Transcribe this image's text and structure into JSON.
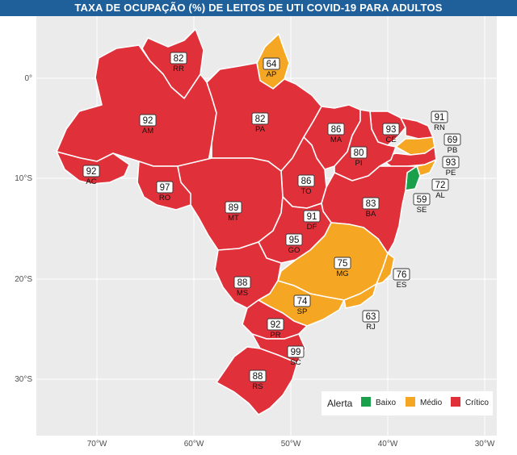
{
  "title": "TAXA DE OCUPAÇÃO (%) DE LEITOS DE UTI COVID-19 PARA ADULTOS",
  "colors": {
    "baixo": "#1aa04b",
    "medio": "#f5a623",
    "critico": "#e0313b",
    "panel": "#ebebeb",
    "title_bg": "#1f5f9a"
  },
  "axes": {
    "y_labels": [
      "0°",
      "10°S",
      "20°S",
      "30°S"
    ],
    "x_labels": [
      "70°W",
      "60°W",
      "50°W",
      "40°W",
      "30°W"
    ]
  },
  "states": [
    {
      "abbr": "RR",
      "value": "82",
      "level": "critico"
    },
    {
      "abbr": "AP",
      "value": "64",
      "level": "medio"
    },
    {
      "abbr": "AM",
      "value": "92",
      "level": "critico"
    },
    {
      "abbr": "PA",
      "value": "82",
      "level": "critico"
    },
    {
      "abbr": "MA",
      "value": "86",
      "level": "critico"
    },
    {
      "abbr": "CE",
      "value": "93",
      "level": "critico"
    },
    {
      "abbr": "RN",
      "value": "91",
      "level": "critico"
    },
    {
      "abbr": "PB",
      "value": "69",
      "level": "medio"
    },
    {
      "abbr": "PE",
      "value": "93",
      "level": "critico"
    },
    {
      "abbr": "PI",
      "value": "80",
      "level": "critico"
    },
    {
      "abbr": "AL",
      "value": "72",
      "level": "medio"
    },
    {
      "abbr": "SE",
      "value": "59",
      "level": "baixo"
    },
    {
      "abbr": "AC",
      "value": "92",
      "level": "critico"
    },
    {
      "abbr": "RO",
      "value": "97",
      "level": "critico"
    },
    {
      "abbr": "TO",
      "value": "86",
      "level": "critico"
    },
    {
      "abbr": "BA",
      "value": "83",
      "level": "critico"
    },
    {
      "abbr": "MT",
      "value": "89",
      "level": "critico"
    },
    {
      "abbr": "DF",
      "value": "91",
      "level": "critico"
    },
    {
      "abbr": "GO",
      "value": "95",
      "level": "critico"
    },
    {
      "abbr": "MG",
      "value": "75",
      "level": "medio"
    },
    {
      "abbr": "ES",
      "value": "76",
      "level": "medio"
    },
    {
      "abbr": "MS",
      "value": "88",
      "level": "critico"
    },
    {
      "abbr": "SP",
      "value": "74",
      "level": "medio"
    },
    {
      "abbr": "RJ",
      "value": "63",
      "level": "medio"
    },
    {
      "abbr": "PR",
      "value": "92",
      "level": "critico"
    },
    {
      "abbr": "SC",
      "value": "99",
      "level": "critico"
    },
    {
      "abbr": "RS",
      "value": "88",
      "level": "critico"
    }
  ],
  "legend": {
    "title": "Alerta",
    "items": [
      {
        "label": "Baixo",
        "level": "baixo"
      },
      {
        "label": "Médio",
        "level": "medio"
      },
      {
        "label": "Crítico",
        "level": "critico"
      }
    ]
  }
}
